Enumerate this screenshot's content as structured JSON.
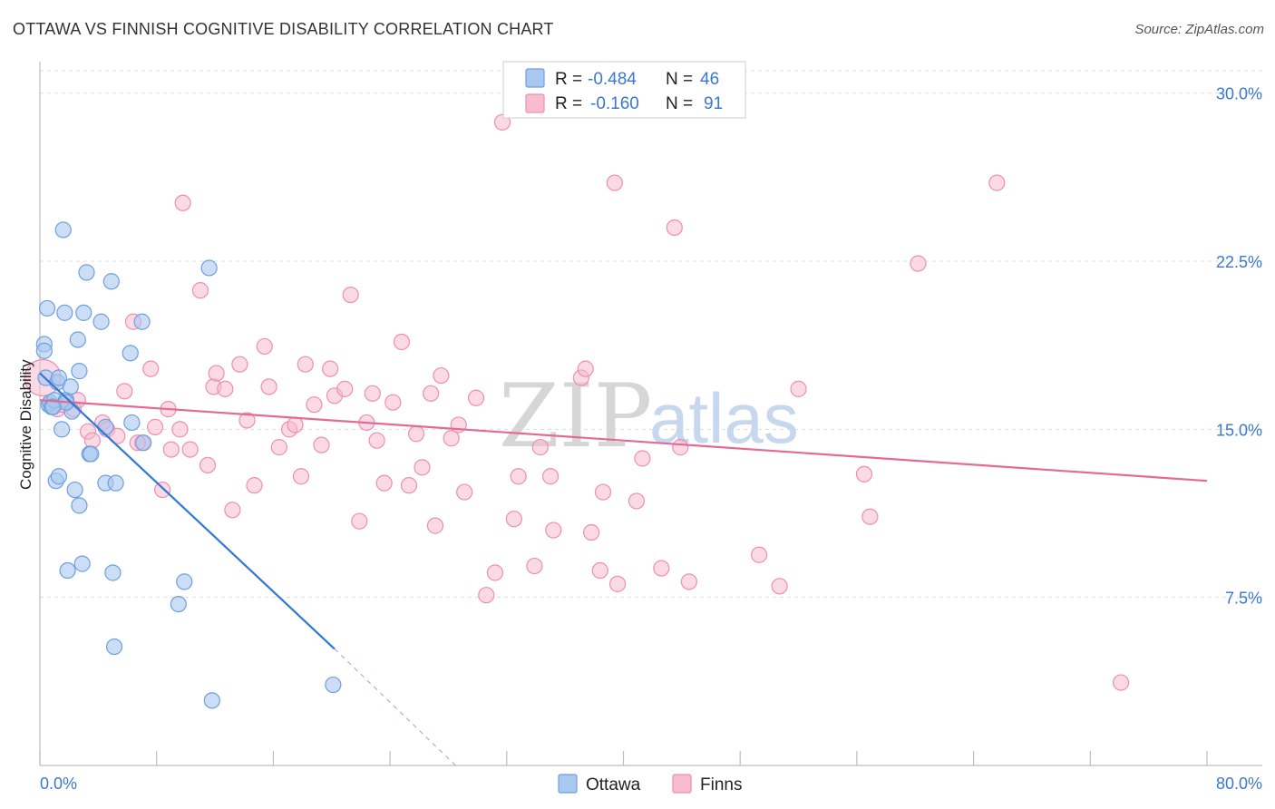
{
  "header": {
    "title": "OTTAWA VS FINNISH COGNITIVE DISABILITY CORRELATION CHART",
    "source": "Source: ZipAtlas.com"
  },
  "watermark": {
    "zip": "ZIP",
    "atlas": "atlas"
  },
  "colors": {
    "ottawa_fill": "#a9c8f0",
    "ottawa_stroke": "#6f9fde",
    "ottawa_line": "#2f78d6",
    "finns_fill": "#f7bcd0",
    "finns_stroke": "#ec8fb0",
    "finns_line": "#e46a95",
    "tick": "#3a78d0",
    "grid": "#dcdcdc"
  },
  "legend": {
    "r_label": "R =",
    "n_label": "N =",
    "rows": [
      {
        "r": "-0.484",
        "n": "46"
      },
      {
        "r": "-0.160",
        "n": "91"
      }
    ]
  },
  "chart_data": {
    "type": "scatter",
    "title": "OTTAWA VS FINNISH COGNITIVE DISABILITY CORRELATION CHART",
    "xlabel": "",
    "ylabel": "Cognitive Disability",
    "xlim": [
      0,
      80
    ],
    "ylim": [
      0,
      31.0
    ],
    "grid": true,
    "x_tick_labels": [
      {
        "value": 0,
        "label": "0.0%"
      },
      {
        "value": 80,
        "label": "80.0%"
      }
    ],
    "y_tick_labels": [
      {
        "value": 7.5,
        "label": "7.5%"
      },
      {
        "value": 15.0,
        "label": "15.0%"
      },
      {
        "value": 22.5,
        "label": "22.5%"
      },
      {
        "value": 30.0,
        "label": "30.0%"
      }
    ],
    "series": [
      {
        "name": "Ottawa",
        "points": [
          [
            0.3,
            18.8
          ],
          [
            0.3,
            18.5
          ],
          [
            0.4,
            17.3
          ],
          [
            0.5,
            20.4
          ],
          [
            0.6,
            16.1
          ],
          [
            0.7,
            16.2
          ],
          [
            0.8,
            16.0
          ],
          [
            1.0,
            16.3
          ],
          [
            1.1,
            12.7
          ],
          [
            1.2,
            17.1
          ],
          [
            1.3,
            17.3
          ],
          [
            1.3,
            12.9
          ],
          [
            1.5,
            15.0
          ],
          [
            1.6,
            23.9
          ],
          [
            1.7,
            20.2
          ],
          [
            1.8,
            16.3
          ],
          [
            1.9,
            8.7
          ],
          [
            2.1,
            16.9
          ],
          [
            2.2,
            15.8
          ],
          [
            2.4,
            12.3
          ],
          [
            2.6,
            19.0
          ],
          [
            2.7,
            11.6
          ],
          [
            2.7,
            17.6
          ],
          [
            2.9,
            9.0
          ],
          [
            3.0,
            20.2
          ],
          [
            3.2,
            22.0
          ],
          [
            3.4,
            13.9
          ],
          [
            3.5,
            13.9
          ],
          [
            4.2,
            19.8
          ],
          [
            4.5,
            12.6
          ],
          [
            4.5,
            15.1
          ],
          [
            4.9,
            21.6
          ],
          [
            5.0,
            8.6
          ],
          [
            5.1,
            5.3
          ],
          [
            5.2,
            12.6
          ],
          [
            6.2,
            18.4
          ],
          [
            6.3,
            15.3
          ],
          [
            7.0,
            19.8
          ],
          [
            7.1,
            14.4
          ],
          [
            9.5,
            7.2
          ],
          [
            9.9,
            8.2
          ],
          [
            11.6,
            22.2
          ],
          [
            11.8,
            2.9
          ],
          [
            20.1,
            3.6
          ],
          [
            1.8,
            16.2
          ],
          [
            0.9,
            16.0
          ]
        ],
        "trend": {
          "x0": 0,
          "y0": 17.5,
          "x1": 20.2,
          "y1": 5.2,
          "dash_to_x": 28.5,
          "dash_to_y": 0.0
        }
      },
      {
        "name": "Finns",
        "points": [
          [
            0.2,
            17.3
          ],
          [
            1.2,
            15.9
          ],
          [
            1.6,
            16.1
          ],
          [
            2.3,
            15.9
          ],
          [
            3.3,
            14.9
          ],
          [
            3.6,
            14.5
          ],
          [
            4.3,
            15.3
          ],
          [
            4.6,
            15.0
          ],
          [
            5.3,
            14.7
          ],
          [
            5.8,
            16.7
          ],
          [
            6.4,
            19.8
          ],
          [
            7.0,
            14.4
          ],
          [
            7.6,
            17.7
          ],
          [
            7.9,
            15.1
          ],
          [
            8.4,
            12.3
          ],
          [
            8.8,
            15.9
          ],
          [
            9.0,
            14.1
          ],
          [
            9.8,
            25.1
          ],
          [
            10.3,
            14.1
          ],
          [
            11.0,
            21.2
          ],
          [
            11.5,
            13.4
          ],
          [
            11.9,
            16.9
          ],
          [
            12.1,
            17.5
          ],
          [
            12.7,
            16.8
          ],
          [
            13.2,
            11.4
          ],
          [
            13.7,
            17.9
          ],
          [
            14.2,
            15.4
          ],
          [
            14.7,
            12.5
          ],
          [
            15.4,
            18.7
          ],
          [
            15.7,
            16.9
          ],
          [
            16.4,
            14.2
          ],
          [
            17.1,
            15.0
          ],
          [
            17.5,
            15.2
          ],
          [
            17.9,
            12.9
          ],
          [
            18.2,
            17.9
          ],
          [
            18.8,
            16.1
          ],
          [
            19.3,
            14.3
          ],
          [
            19.9,
            17.7
          ],
          [
            20.2,
            16.5
          ],
          [
            20.9,
            16.8
          ],
          [
            21.3,
            21.0
          ],
          [
            21.9,
            10.9
          ],
          [
            22.4,
            15.3
          ],
          [
            22.8,
            16.6
          ],
          [
            23.1,
            14.5
          ],
          [
            23.6,
            12.6
          ],
          [
            24.2,
            16.2
          ],
          [
            24.8,
            18.9
          ],
          [
            25.3,
            12.5
          ],
          [
            25.8,
            14.8
          ],
          [
            26.2,
            13.3
          ],
          [
            26.8,
            16.6
          ],
          [
            27.1,
            10.7
          ],
          [
            27.5,
            17.4
          ],
          [
            28.2,
            14.6
          ],
          [
            28.7,
            15.2
          ],
          [
            29.1,
            12.2
          ],
          [
            29.9,
            16.4
          ],
          [
            30.6,
            7.6
          ],
          [
            31.2,
            8.6
          ],
          [
            31.7,
            28.7
          ],
          [
            32.5,
            11.0
          ],
          [
            32.8,
            12.9
          ],
          [
            33.9,
            8.9
          ],
          [
            34.3,
            14.2
          ],
          [
            35.0,
            12.9
          ],
          [
            35.2,
            10.5
          ],
          [
            37.1,
            17.3
          ],
          [
            37.4,
            17.7
          ],
          [
            37.8,
            10.4
          ],
          [
            38.4,
            8.7
          ],
          [
            38.6,
            12.2
          ],
          [
            39.4,
            26.0
          ],
          [
            39.6,
            8.1
          ],
          [
            40.9,
            11.8
          ],
          [
            41.3,
            13.7
          ],
          [
            42.6,
            8.8
          ],
          [
            43.5,
            24.0
          ],
          [
            44.5,
            8.2
          ],
          [
            43.9,
            14.2
          ],
          [
            49.3,
            9.4
          ],
          [
            50.7,
            8.0
          ],
          [
            52.0,
            16.8
          ],
          [
            56.5,
            13.0
          ],
          [
            56.9,
            11.1
          ],
          [
            60.2,
            22.4
          ],
          [
            65.6,
            26.0
          ],
          [
            74.1,
            3.7
          ],
          [
            2.6,
            16.3
          ],
          [
            6.7,
            14.4
          ],
          [
            9.6,
            15.0
          ]
        ],
        "trend": {
          "x0": 0,
          "y0": 16.3,
          "x1": 80,
          "y1": 12.7
        }
      }
    ],
    "legend_position": "top-center",
    "bottom_legend": [
      "Ottawa",
      "Finns"
    ]
  }
}
